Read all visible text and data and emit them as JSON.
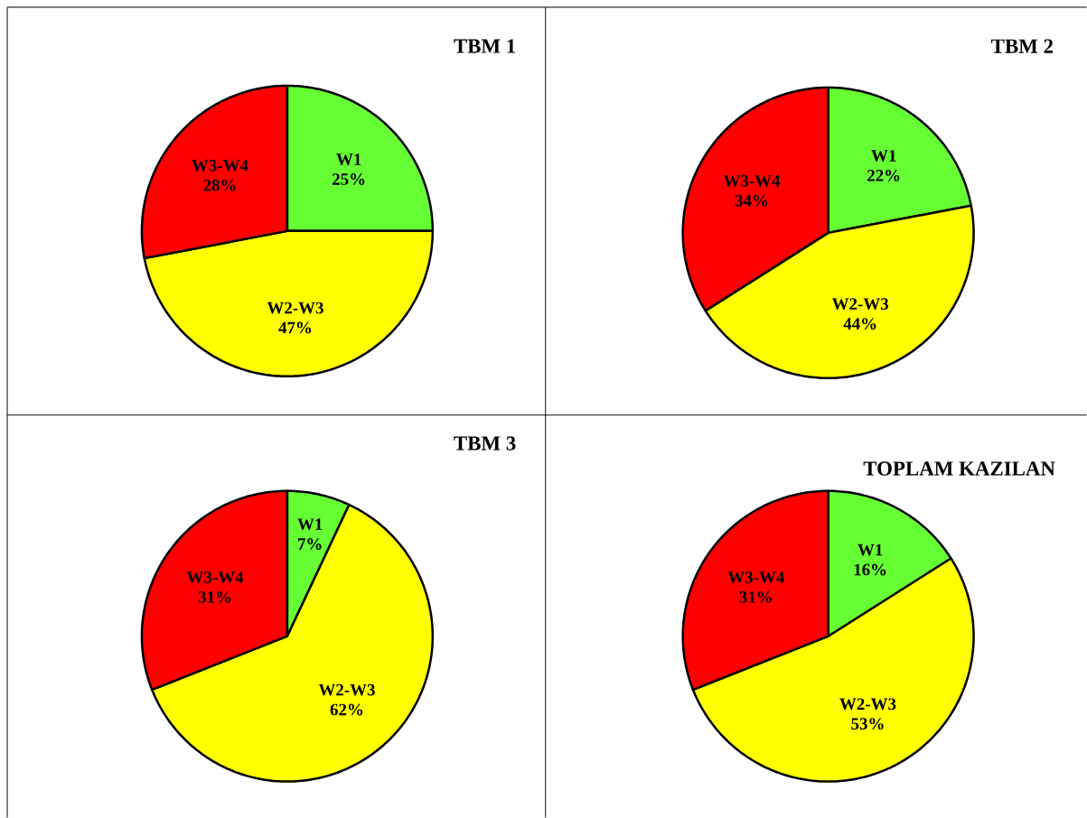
{
  "chart_data": [
    {
      "type": "pie",
      "title": "TBM 1",
      "categories": [
        "W1",
        "W2-W3",
        "W3-W4"
      ],
      "values": [
        25,
        47,
        28
      ],
      "value_labels": [
        "25%",
        "47%",
        "28%"
      ],
      "colors": [
        "#66ff33",
        "#ffff00",
        "#ff0000"
      ]
    },
    {
      "type": "pie",
      "title": "TBM 2",
      "categories": [
        "W1",
        "W2-W3",
        "W3-W4"
      ],
      "values": [
        22,
        44,
        34
      ],
      "value_labels": [
        "22%",
        "44%",
        "34%"
      ],
      "colors": [
        "#66ff33",
        "#ffff00",
        "#ff0000"
      ]
    },
    {
      "type": "pie",
      "title": "TBM 3",
      "categories": [
        "W1",
        "W2-W3",
        "W3-W4"
      ],
      "values": [
        7,
        62,
        31
      ],
      "value_labels": [
        "7%",
        "62%",
        "31%"
      ],
      "colors": [
        "#66ff33",
        "#ffff00",
        "#ff0000"
      ]
    },
    {
      "type": "pie",
      "title": "TOPLAM KAZILAN",
      "categories": [
        "W1",
        "W2-W3",
        "W3-W4"
      ],
      "values": [
        16,
        53,
        31
      ],
      "value_labels": [
        "16%",
        "53%",
        "31%"
      ],
      "colors": [
        "#66ff33",
        "#ffff00",
        "#ff0000"
      ]
    }
  ]
}
